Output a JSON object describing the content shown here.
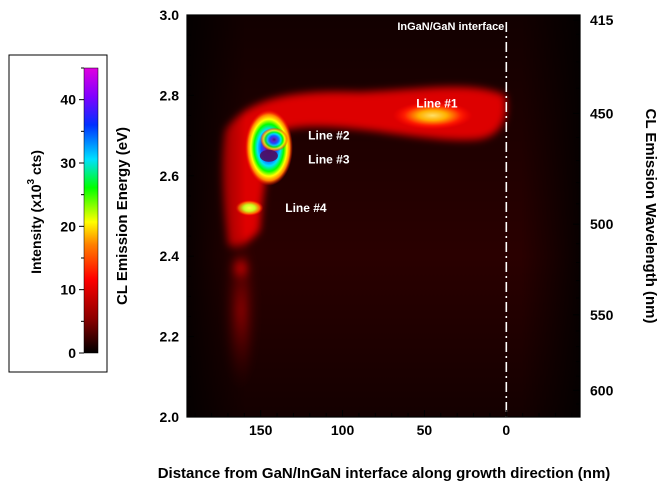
{
  "chart_data": {
    "type": "heatmap",
    "title": "",
    "xlabel": "Distance from GaN/InGaN interface along growth direction (nm)",
    "ylabel": "CL Emission Energy (eV)",
    "y2label": "CL Emission Wavelength (nm)",
    "xlim": [
      195,
      -45
    ],
    "ylim": [
      2.0,
      3.0
    ],
    "x_ticks": [
      150,
      100,
      50,
      0
    ],
    "x_tick_labels": [
      "150",
      "100",
      "50",
      "0"
    ],
    "y_ticks": [
      2.0,
      2.2,
      2.4,
      2.6,
      2.8,
      3.0
    ],
    "y_tick_labels": [
      "2.0",
      "2.2",
      "2.4",
      "2.6",
      "2.8",
      "3.0"
    ],
    "y2_ticks": [
      415,
      450,
      500,
      550,
      600
    ],
    "y2_tick_labels": [
      "415",
      "450",
      "500",
      "550",
      "600"
    ],
    "colorbar": {
      "label_main": "Intensity (x10",
      "label_exp": "3",
      "label_end": " cts)",
      "range": [
        0,
        45
      ],
      "ticks": [
        0,
        10,
        20,
        30,
        40
      ],
      "tick_labels": [
        "0",
        "10",
        "20",
        "30",
        "40"
      ],
      "colors": [
        "#000000",
        "#8b0000",
        "#ff0000",
        "#ffb000",
        "#ffff00",
        "#00ff00",
        "#00e0ff",
        "#0030ff",
        "#8000ff",
        "#e000e0"
      ]
    },
    "interface": {
      "x": 0,
      "label": "InGaN/GaN interface"
    },
    "hotspots": [
      {
        "x": 45,
        "y": 2.75,
        "peak": 20
      },
      {
        "x": 145,
        "y": 2.65,
        "peak": 44
      },
      {
        "x": 143,
        "y": 2.69,
        "peak": 32
      },
      {
        "x": 157,
        "y": 2.52,
        "peak": 25
      },
      {
        "x": 155,
        "y": 2.37,
        "peak": 8
      }
    ],
    "annotations": [
      {
        "text": "Line #1",
        "x": 55,
        "y": 2.78
      },
      {
        "text": "Line #2",
        "x": 121,
        "y": 2.7
      },
      {
        "text": "Line #3",
        "x": 121,
        "y": 2.64
      },
      {
        "text": "Line #4",
        "x": 135,
        "y": 2.52
      }
    ]
  }
}
